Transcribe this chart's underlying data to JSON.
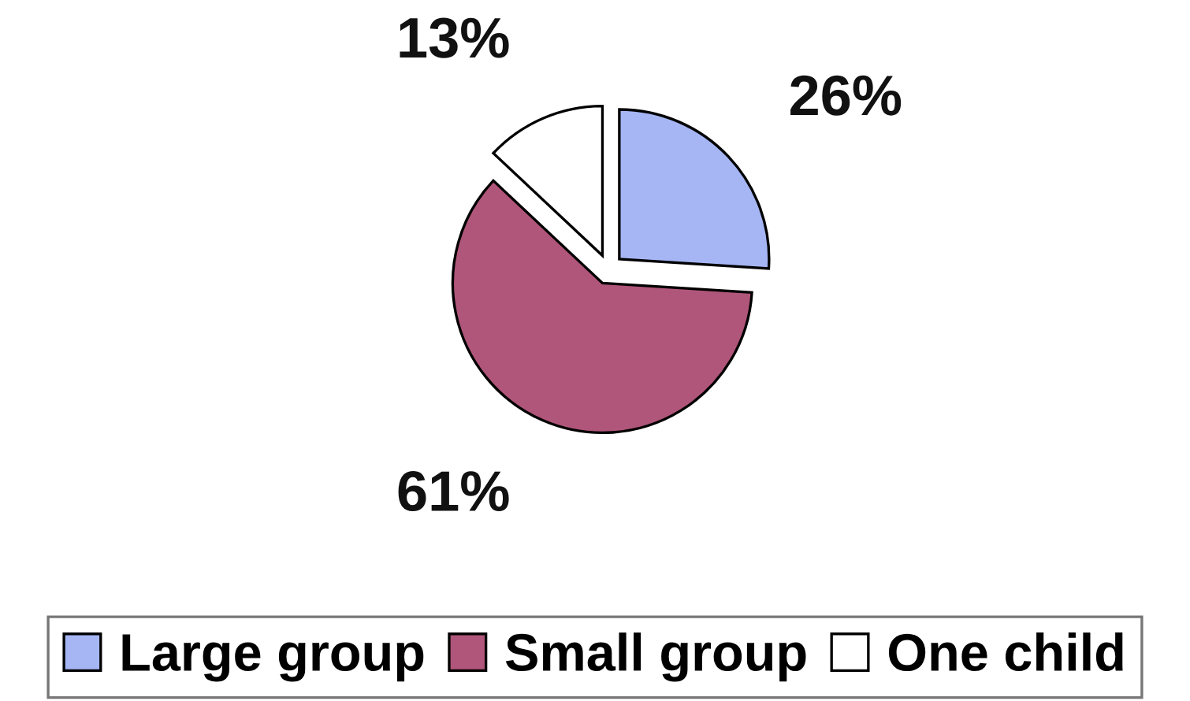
{
  "chart_data": {
    "type": "pie",
    "categories": [
      "Large group",
      "Small group",
      "One child"
    ],
    "values": [
      26,
      61,
      13
    ],
    "colors": [
      "#a6b6f4",
      "#b0567a",
      "#ffffff"
    ],
    "value_labels": [
      "26%",
      "61%",
      "13%"
    ],
    "legend": "bottom"
  }
}
